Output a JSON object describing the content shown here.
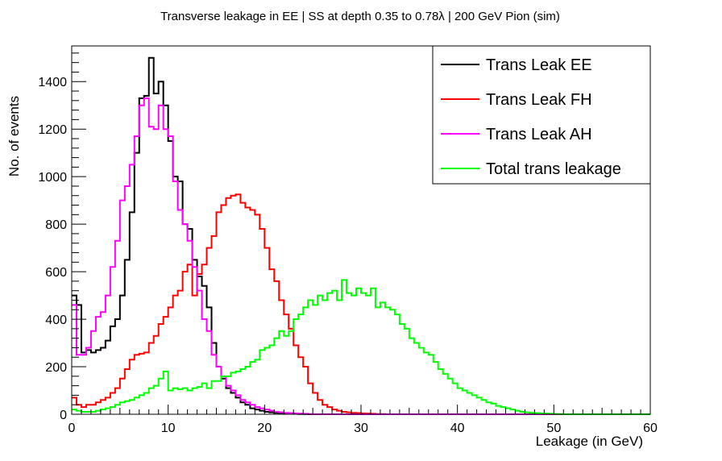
{
  "chart_data": {
    "type": "histogram",
    "title": "Transverse leakage in EE | SS at depth 0.35 to 0.78λ | 200 GeV Pion (sim)",
    "xlabel": "Leakage (in GeV)",
    "ylabel": "No. of events",
    "xlim": [
      0,
      60
    ],
    "ylim": [
      0,
      1550
    ],
    "x_ticks": [
      0,
      10,
      20,
      30,
      40,
      50,
      60
    ],
    "y_ticks": [
      0,
      200,
      400,
      600,
      800,
      1000,
      1200,
      1400
    ],
    "bin_width": 0.5,
    "legend_position": "top-right",
    "series": [
      {
        "name": "Trans Leak EE",
        "color": "#000000",
        "values": [
          500,
          460,
          260,
          270,
          260,
          270,
          280,
          310,
          370,
          400,
          500,
          650,
          850,
          1100,
          1330,
          1340,
          1500,
          1350,
          1400,
          1300,
          1150,
          1000,
          980,
          800,
          780,
          650,
          580,
          540,
          450,
          300,
          200,
          150,
          110,
          90,
          70,
          50,
          40,
          25,
          20,
          15,
          10,
          8,
          6,
          5,
          4,
          3,
          2,
          1,
          1,
          0,
          0,
          0,
          0,
          0,
          0,
          0,
          0,
          0,
          0,
          0,
          0,
          0,
          0,
          0,
          0,
          0,
          0,
          0,
          0,
          0,
          0,
          0,
          0,
          0,
          0,
          0,
          0,
          0,
          0,
          0,
          0,
          0,
          0,
          0,
          0,
          0,
          0,
          0,
          0,
          0,
          0,
          0,
          0,
          0,
          0,
          0,
          0,
          0,
          0,
          0,
          0,
          0,
          0,
          0,
          0,
          0,
          0,
          0,
          0,
          0,
          0,
          0,
          0,
          0,
          0,
          0,
          0,
          0,
          0,
          0
        ]
      },
      {
        "name": "Trans Leak FH",
        "color": "#ff0000",
        "values": [
          70,
          40,
          30,
          40,
          40,
          50,
          60,
          70,
          90,
          110,
          150,
          190,
          230,
          250,
          255,
          260,
          300,
          330,
          380,
          410,
          450,
          500,
          520,
          600,
          630,
          500,
          590,
          630,
          700,
          750,
          850,
          880,
          910,
          920,
          925,
          890,
          870,
          860,
          840,
          780,
          700,
          610,
          560,
          480,
          420,
          360,
          290,
          240,
          200,
          130,
          90,
          60,
          40,
          30,
          20,
          15,
          10,
          8,
          6,
          5,
          4,
          3,
          2,
          1,
          1,
          0,
          0,
          0,
          0,
          0,
          0,
          0,
          0,
          0,
          0,
          0,
          0,
          0,
          0,
          0,
          0,
          0,
          0,
          0,
          0,
          0,
          0,
          0,
          0,
          0,
          0,
          0,
          0,
          0,
          0,
          0,
          0,
          0,
          0,
          0,
          0,
          0,
          0,
          0,
          0,
          0,
          0,
          0,
          0,
          0,
          0,
          0,
          0,
          0,
          0,
          0,
          0,
          0,
          0,
          0
        ]
      },
      {
        "name": "Trans Leak AH",
        "color": "#ff00ff",
        "values": [
          460,
          250,
          250,
          280,
          350,
          410,
          430,
          500,
          620,
          730,
          900,
          960,
          1050,
          1170,
          1300,
          1330,
          1210,
          1200,
          1300,
          1200,
          1170,
          980,
          860,
          800,
          730,
          620,
          520,
          400,
          350,
          250,
          200,
          160,
          120,
          100,
          80,
          60,
          50,
          40,
          30,
          25,
          20,
          15,
          10,
          8,
          6,
          5,
          4,
          3,
          2,
          1,
          0,
          0,
          0,
          0,
          0,
          0,
          0,
          0,
          0,
          0,
          0,
          0,
          0,
          0,
          0,
          0,
          0,
          0,
          0,
          0,
          0,
          0,
          0,
          0,
          0,
          0,
          0,
          0,
          0,
          0,
          0,
          0,
          0,
          0,
          0,
          0,
          0,
          0,
          0,
          0,
          0,
          0,
          0,
          0,
          0,
          0,
          0,
          0,
          0,
          0,
          0,
          0,
          0,
          0,
          0,
          0,
          0,
          0,
          0,
          0,
          0,
          0,
          0,
          0,
          0,
          0,
          0,
          0,
          0,
          0
        ]
      },
      {
        "name": "Total trans leakage",
        "color": "#00ff00",
        "values": [
          20,
          15,
          10,
          10,
          10,
          15,
          20,
          25,
          30,
          40,
          50,
          55,
          60,
          70,
          80,
          90,
          110,
          120,
          150,
          180,
          100,
          110,
          105,
          110,
          100,
          110,
          115,
          130,
          110,
          140,
          140,
          160,
          160,
          175,
          180,
          190,
          200,
          220,
          230,
          270,
          280,
          290,
          320,
          350,
          330,
          350,
          400,
          420,
          450,
          480,
          460,
          500,
          480,
          510,
          520,
          480,
          565,
          510,
          500,
          530,
          510,
          500,
          530,
          450,
          470,
          450,
          440,
          420,
          380,
          360,
          320,
          300,
          280,
          260,
          250,
          220,
          190,
          170,
          150,
          130,
          110,
          100,
          90,
          80,
          70,
          60,
          50,
          45,
          35,
          30,
          25,
          20,
          15,
          10,
          8,
          6,
          5,
          4,
          3,
          2,
          1,
          1,
          0,
          0,
          0,
          0,
          0,
          0,
          0,
          0,
          0,
          0,
          0,
          0,
          0,
          0,
          0,
          0,
          0,
          0
        ]
      }
    ]
  }
}
